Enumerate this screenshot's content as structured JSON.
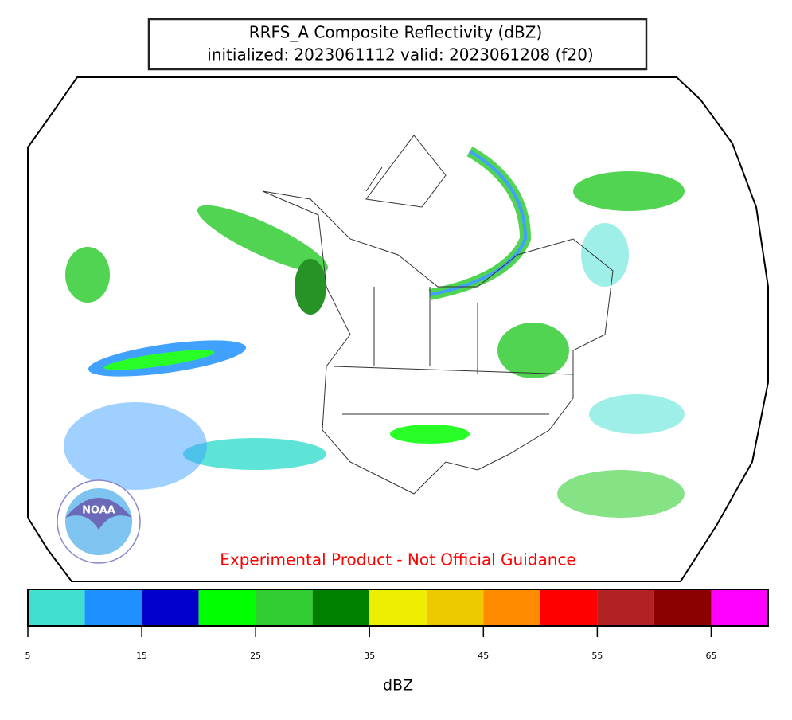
{
  "title": {
    "line1": "RRFS_A Composite Reflectivity (dBZ)",
    "line2": "initialized: 2023061112 valid: 2023061208 (f20)"
  },
  "map": {
    "disclaimer": "Experimental Product - Not Official Guidance",
    "logo_text": "NOAA"
  },
  "colorbar": {
    "levels": [
      5,
      10,
      15,
      20,
      25,
      30,
      35,
      40,
      45,
      50,
      55,
      60,
      65,
      70
    ],
    "colors": [
      "#40e0d0",
      "#1e90ff",
      "#0000cd",
      "#00ff00",
      "#32cd32",
      "#008000",
      "#eeee00",
      "#eec900",
      "#ff8c00",
      "#ff0000",
      "#b22222",
      "#8b0000",
      "#ff00ff"
    ],
    "ticks": [
      5,
      15,
      25,
      35,
      45,
      55,
      65
    ],
    "label": "dBZ"
  }
}
